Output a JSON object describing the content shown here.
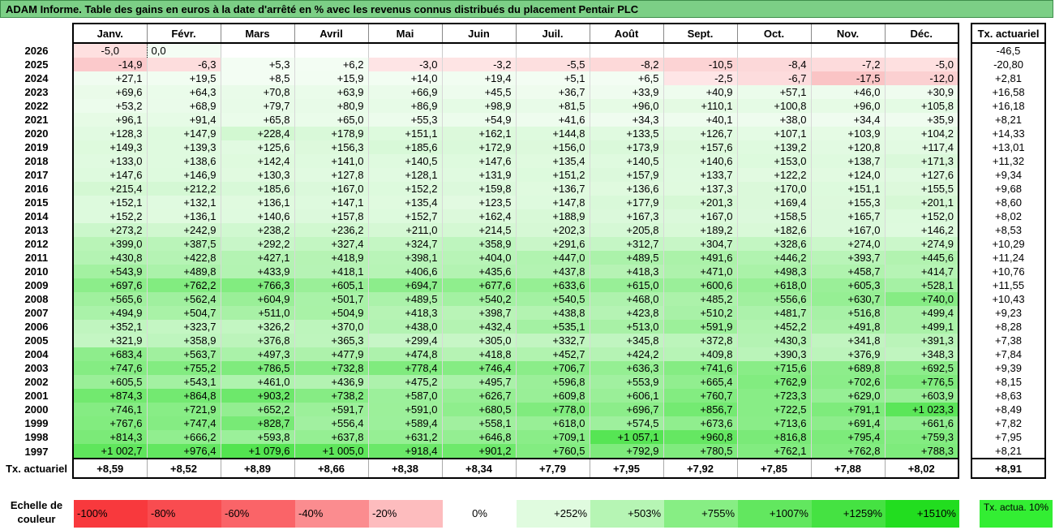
{
  "title": "ADAM Informe. Table des gains en euros à la date d'arrêté en % avec les revenus connus distribués du placement Pentair PLC",
  "months": [
    "Janv.",
    "Févr.",
    "Mars",
    "Avril",
    "Mai",
    "Juin",
    "Juil.",
    "Août",
    "Sept.",
    "Oct.",
    "Nov.",
    "Déc."
  ],
  "tx_header": "Tx. actuariel",
  "rows": [
    {
      "year": "2026",
      "values": [
        "-5,0",
        "0,0",
        "",
        "",
        "",
        "",
        "",
        "",
        "",
        "",
        "",
        ""
      ],
      "tx": "-46,5"
    },
    {
      "year": "2025",
      "values": [
        "-14,9",
        "-6,3",
        "+5,3",
        "+6,2",
        "-3,0",
        "-3,2",
        "-5,5",
        "-8,2",
        "-10,5",
        "-8,4",
        "-7,2",
        "-5,0"
      ],
      "tx": "-20,80"
    },
    {
      "year": "2024",
      "values": [
        "+27,1",
        "+19,5",
        "+8,5",
        "+15,9",
        "+14,0",
        "+19,4",
        "+5,1",
        "+6,5",
        "-2,5",
        "-6,7",
        "-17,5",
        "-12,0"
      ],
      "tx": "+2,81"
    },
    {
      "year": "2023",
      "values": [
        "+69,6",
        "+64,3",
        "+70,8",
        "+63,9",
        "+66,9",
        "+45,5",
        "+36,7",
        "+33,9",
        "+40,9",
        "+57,1",
        "+46,0",
        "+30,9"
      ],
      "tx": "+16,58"
    },
    {
      "year": "2022",
      "values": [
        "+53,2",
        "+68,9",
        "+79,7",
        "+80,9",
        "+86,9",
        "+98,9",
        "+81,5",
        "+96,0",
        "+110,1",
        "+100,8",
        "+96,0",
        "+105,8"
      ],
      "tx": "+16,18"
    },
    {
      "year": "2021",
      "values": [
        "+96,1",
        "+91,4",
        "+65,8",
        "+65,0",
        "+55,3",
        "+54,9",
        "+41,6",
        "+34,3",
        "+40,1",
        "+38,0",
        "+34,4",
        "+35,9"
      ],
      "tx": "+8,21"
    },
    {
      "year": "2020",
      "values": [
        "+128,3",
        "+147,9",
        "+228,4",
        "+178,9",
        "+151,1",
        "+162,1",
        "+144,8",
        "+133,5",
        "+126,7",
        "+107,1",
        "+103,9",
        "+104,2"
      ],
      "tx": "+14,33"
    },
    {
      "year": "2019",
      "values": [
        "+149,3",
        "+139,3",
        "+125,6",
        "+156,3",
        "+185,6",
        "+172,9",
        "+156,0",
        "+173,9",
        "+157,6",
        "+139,2",
        "+120,8",
        "+117,4"
      ],
      "tx": "+13,01"
    },
    {
      "year": "2018",
      "values": [
        "+133,0",
        "+138,6",
        "+142,4",
        "+141,0",
        "+140,5",
        "+147,6",
        "+135,4",
        "+140,5",
        "+140,6",
        "+153,0",
        "+138,7",
        "+171,3"
      ],
      "tx": "+11,32"
    },
    {
      "year": "2017",
      "values": [
        "+147,6",
        "+146,9",
        "+130,3",
        "+127,8",
        "+128,1",
        "+131,9",
        "+151,2",
        "+157,9",
        "+133,7",
        "+122,2",
        "+124,0",
        "+127,6"
      ],
      "tx": "+9,34"
    },
    {
      "year": "2016",
      "values": [
        "+215,4",
        "+212,2",
        "+185,6",
        "+167,0",
        "+152,2",
        "+159,8",
        "+136,7",
        "+136,6",
        "+137,3",
        "+170,0",
        "+151,1",
        "+155,5"
      ],
      "tx": "+9,68"
    },
    {
      "year": "2015",
      "values": [
        "+152,1",
        "+132,1",
        "+136,1",
        "+147,1",
        "+135,4",
        "+123,5",
        "+147,8",
        "+177,9",
        "+201,3",
        "+169,4",
        "+155,3",
        "+201,1"
      ],
      "tx": "+8,60"
    },
    {
      "year": "2014",
      "values": [
        "+152,2",
        "+136,1",
        "+140,6",
        "+157,8",
        "+152,7",
        "+162,4",
        "+188,9",
        "+167,3",
        "+167,0",
        "+158,5",
        "+165,7",
        "+152,0"
      ],
      "tx": "+8,02"
    },
    {
      "year": "2013",
      "values": [
        "+273,2",
        "+242,9",
        "+238,2",
        "+236,2",
        "+211,0",
        "+214,5",
        "+202,3",
        "+205,8",
        "+189,2",
        "+182,6",
        "+167,0",
        "+146,2"
      ],
      "tx": "+8,53"
    },
    {
      "year": "2012",
      "values": [
        "+399,0",
        "+387,5",
        "+292,2",
        "+327,4",
        "+324,7",
        "+358,9",
        "+291,6",
        "+312,7",
        "+304,7",
        "+328,6",
        "+274,0",
        "+274,9"
      ],
      "tx": "+10,29"
    },
    {
      "year": "2011",
      "values": [
        "+430,8",
        "+422,8",
        "+427,1",
        "+418,9",
        "+398,1",
        "+404,0",
        "+447,0",
        "+489,5",
        "+491,6",
        "+446,2",
        "+393,7",
        "+445,6"
      ],
      "tx": "+11,24"
    },
    {
      "year": "2010",
      "values": [
        "+543,9",
        "+489,8",
        "+433,9",
        "+418,1",
        "+406,6",
        "+435,6",
        "+437,8",
        "+418,3",
        "+471,0",
        "+498,3",
        "+458,7",
        "+414,7"
      ],
      "tx": "+10,76"
    },
    {
      "year": "2009",
      "values": [
        "+697,6",
        "+762,2",
        "+766,3",
        "+605,1",
        "+694,7",
        "+677,6",
        "+633,6",
        "+615,0",
        "+600,6",
        "+618,0",
        "+605,3",
        "+528,1"
      ],
      "tx": "+11,55"
    },
    {
      "year": "2008",
      "values": [
        "+565,6",
        "+562,4",
        "+604,9",
        "+501,7",
        "+489,5",
        "+540,2",
        "+540,5",
        "+468,0",
        "+485,2",
        "+556,6",
        "+630,7",
        "+740,0"
      ],
      "tx": "+10,43"
    },
    {
      "year": "2007",
      "values": [
        "+494,9",
        "+504,7",
        "+511,0",
        "+504,9",
        "+418,3",
        "+398,7",
        "+438,8",
        "+423,8",
        "+510,2",
        "+481,7",
        "+516,8",
        "+499,4"
      ],
      "tx": "+9,23"
    },
    {
      "year": "2006",
      "values": [
        "+352,1",
        "+323,7",
        "+326,2",
        "+370,0",
        "+438,0",
        "+432,4",
        "+535,1",
        "+513,0",
        "+591,9",
        "+452,2",
        "+491,8",
        "+499,1"
      ],
      "tx": "+8,28"
    },
    {
      "year": "2005",
      "values": [
        "+321,9",
        "+358,9",
        "+376,8",
        "+365,3",
        "+299,4",
        "+305,0",
        "+332,7",
        "+345,8",
        "+372,8",
        "+430,3",
        "+341,8",
        "+391,3"
      ],
      "tx": "+7,38"
    },
    {
      "year": "2004",
      "values": [
        "+683,4",
        "+563,7",
        "+497,3",
        "+477,9",
        "+474,8",
        "+418,8",
        "+452,7",
        "+424,2",
        "+409,8",
        "+390,3",
        "+376,9",
        "+348,3"
      ],
      "tx": "+7,84"
    },
    {
      "year": "2003",
      "values": [
        "+747,6",
        "+755,2",
        "+786,5",
        "+732,8",
        "+778,4",
        "+746,4",
        "+706,7",
        "+636,3",
        "+741,6",
        "+715,6",
        "+689,8",
        "+692,5"
      ],
      "tx": "+9,39"
    },
    {
      "year": "2002",
      "values": [
        "+605,5",
        "+543,1",
        "+461,0",
        "+436,9",
        "+475,2",
        "+495,7",
        "+596,8",
        "+553,9",
        "+665,4",
        "+762,9",
        "+702,6",
        "+776,5"
      ],
      "tx": "+8,15"
    },
    {
      "year": "2001",
      "values": [
        "+874,3",
        "+864,8",
        "+903,2",
        "+738,2",
        "+587,0",
        "+626,7",
        "+609,8",
        "+606,1",
        "+760,7",
        "+723,3",
        "+629,0",
        "+603,9"
      ],
      "tx": "+8,63"
    },
    {
      "year": "2000",
      "values": [
        "+746,1",
        "+721,9",
        "+652,2",
        "+591,7",
        "+591,0",
        "+680,5",
        "+778,0",
        "+696,7",
        "+856,7",
        "+722,5",
        "+791,1",
        "+1 023,3"
      ],
      "tx": "+8,49"
    },
    {
      "year": "1999",
      "values": [
        "+767,6",
        "+747,4",
        "+828,7",
        "+556,4",
        "+589,4",
        "+558,1",
        "+618,0",
        "+574,5",
        "+673,6",
        "+713,6",
        "+691,4",
        "+661,6"
      ],
      "tx": "+7,82"
    },
    {
      "year": "1998",
      "values": [
        "+814,3",
        "+666,2",
        "+593,8",
        "+637,8",
        "+631,2",
        "+646,8",
        "+709,1",
        "+1 057,1",
        "+960,8",
        "+816,8",
        "+795,4",
        "+759,3"
      ],
      "tx": "+7,95"
    },
    {
      "year": "1997",
      "values": [
        "+1 002,7",
        "+976,4",
        "+1 079,6",
        "+1 005,0",
        "+918,4",
        "+901,2",
        "+760,5",
        "+792,9",
        "+780,5",
        "+762,1",
        "+762,8",
        "+788,3"
      ],
      "tx": "+8,21"
    }
  ],
  "footer": {
    "label": "Tx. actuariel",
    "values": [
      "+8,59",
      "+8,52",
      "+8,89",
      "+8,66",
      "+8,38",
      "+8,34",
      "+7,79",
      "+7,95",
      "+7,92",
      "+7,85",
      "+7,88",
      "+8,02"
    ],
    "tx": "+8,91"
  },
  "scale": {
    "label": "Echelle de couleur",
    "items": [
      {
        "text": "-100%",
        "color": "#f8393d",
        "align": "left"
      },
      {
        "text": "-80%",
        "color": "#f94c50",
        "align": "left"
      },
      {
        "text": "-60%",
        "color": "#fa6468",
        "align": "left"
      },
      {
        "text": "-40%",
        "color": "#fb8c8f",
        "align": "left"
      },
      {
        "text": "-20%",
        "color": "#fdbcbe",
        "align": "left"
      },
      {
        "text": "0%",
        "color": "#ffffff",
        "align": "center"
      },
      {
        "text": "+252%",
        "color": "#e0fbdf",
        "align": "right"
      },
      {
        "text": "+503%",
        "color": "#b6f5b4",
        "align": "right"
      },
      {
        "text": "+755%",
        "color": "#87ee84",
        "align": "right"
      },
      {
        "text": "+1007%",
        "color": "#62e75f",
        "align": "right"
      },
      {
        "text": "+1259%",
        "color": "#45e242",
        "align": "right"
      },
      {
        "text": "+1510%",
        "color": "#22dd1f",
        "align": "right"
      }
    ],
    "tx_legend": "Tx. actua. 10%"
  }
}
